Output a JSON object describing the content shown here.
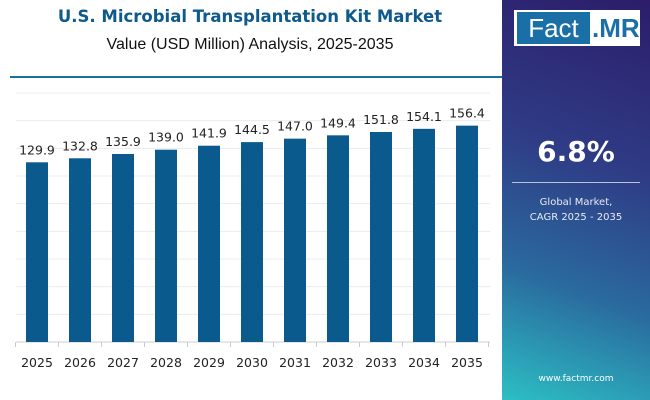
{
  "chart_data": {
    "type": "bar",
    "title": "U.S. Microbial Transplantation Kit Market",
    "subtitle": "Value (USD Million) Analysis, 2025-2035",
    "categories": [
      "2025",
      "2026",
      "2027",
      "2028",
      "2029",
      "2030",
      "2031",
      "2032",
      "2033",
      "2034",
      "2035"
    ],
    "values": [
      129.9,
      132.8,
      135.9,
      139.0,
      141.9,
      144.5,
      147.0,
      149.4,
      151.8,
      154.1,
      156.4
    ],
    "labels": [
      "129.9",
      "132.8",
      "135.9",
      "139.0",
      "141.9",
      "144.5",
      "147.0",
      "149.4",
      "151.8",
      "154.1",
      "156.4"
    ],
    "ylim": [
      0,
      180
    ],
    "grid": true,
    "bar_color": "#0b5a8e"
  },
  "panel": {
    "logo_left": "Fact",
    "logo_right": ".MR",
    "cagr_value": "6.8%",
    "cagr_label_line1": "Global Market,",
    "cagr_label_line2": "CAGR 2025 - 2035",
    "url": "www.factmr.com"
  }
}
